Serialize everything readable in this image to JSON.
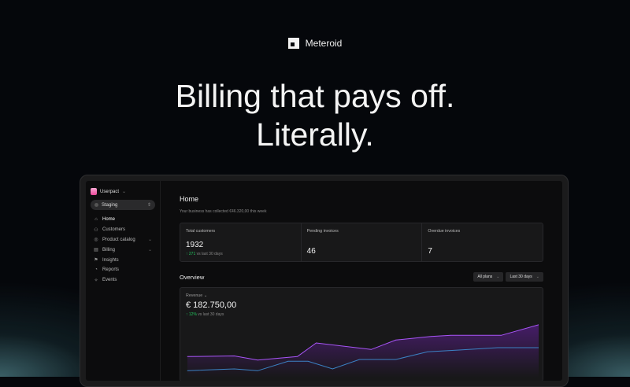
{
  "brand": {
    "name": "Meteroid",
    "logo_icon": "meteroid-logo-icon"
  },
  "headline": {
    "line1": "Billing that pays off.",
    "line2": "Literally."
  },
  "sidebar": {
    "workspace": "Userpact",
    "environment": "Staging",
    "items": [
      {
        "label": "Home",
        "icon": "home-icon",
        "active": true
      },
      {
        "label": "Customers",
        "icon": "users-icon"
      },
      {
        "label": "Product catalog",
        "icon": "catalog-icon",
        "chevron": true
      },
      {
        "label": "Billing",
        "icon": "billing-icon",
        "chevron": true
      },
      {
        "label": "Insights",
        "icon": "insights-icon"
      },
      {
        "label": "Reports",
        "icon": "reports-icon"
      },
      {
        "label": "Events",
        "icon": "events-icon"
      }
    ]
  },
  "main": {
    "title": "Home",
    "subtitle": "Your business has collected €46.320,00 this week",
    "stats": [
      {
        "label": "Total customers",
        "value": "1932",
        "delta": "271",
        "delta_suffix": "vs last 30 days"
      },
      {
        "label": "Pending invoices",
        "value": "46"
      },
      {
        "label": "Overdue invoices",
        "value": "7"
      }
    ],
    "overview": {
      "title": "Overview",
      "plans_filter": "All plans",
      "period_filter": "Last 30 days"
    },
    "revenue": {
      "label": "Revenue",
      "value": "€ 182.750,00",
      "delta": "12%",
      "delta_suffix": "vs last 30 days"
    }
  },
  "colors": {
    "accent_purple": "#a855f7",
    "accent_blue": "#3b82c4",
    "positive": "#22c55e"
  },
  "chart_data": {
    "type": "area",
    "xlim": [
      0,
      30
    ],
    "ylim": [
      0,
      100
    ],
    "grid": false,
    "series": [
      {
        "color": "#a855f7",
        "fill": true,
        "points": [
          [
            0,
            33
          ],
          [
            4,
            34
          ],
          [
            6,
            27
          ],
          [
            9.4,
            33
          ],
          [
            11,
            56
          ],
          [
            15.7,
            45
          ],
          [
            17.8,
            61
          ],
          [
            20.8,
            67
          ],
          [
            22.5,
            69
          ],
          [
            26.8,
            69
          ],
          [
            30,
            87
          ]
        ]
      },
      {
        "color": "#3b82c4",
        "fill": false,
        "points": [
          [
            0,
            9
          ],
          [
            4,
            12
          ],
          [
            6,
            9
          ],
          [
            8.6,
            25
          ],
          [
            10.3,
            25
          ],
          [
            12.4,
            12
          ],
          [
            14.7,
            28
          ],
          [
            17.8,
            28
          ],
          [
            20.5,
            41
          ],
          [
            23.2,
            44
          ],
          [
            26.5,
            48
          ],
          [
            30,
            48
          ]
        ]
      }
    ]
  }
}
